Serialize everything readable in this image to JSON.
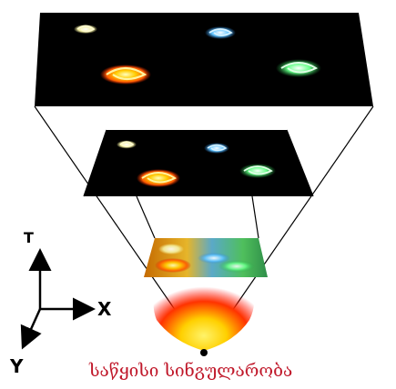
{
  "axes": {
    "t_label": "T",
    "x_label": "X",
    "y_label": "Y"
  },
  "caption": "საწყისი სინგულარობა",
  "colors": {
    "plane_fill": "#000000",
    "frame_line": "#000000",
    "caption": "#c0182a",
    "galaxy_yellow": "#f4f0a0",
    "galaxy_blue": "#5fc3ff",
    "galaxy_orange": "#ff7a00",
    "galaxy_green": "#4dff6e",
    "glow_core": "#ffee33",
    "glow_edge": "#ff0000"
  },
  "icons": [
    "galaxy-spiral-icon",
    "axis-arrow-icon",
    "singularity-dot-icon"
  ]
}
